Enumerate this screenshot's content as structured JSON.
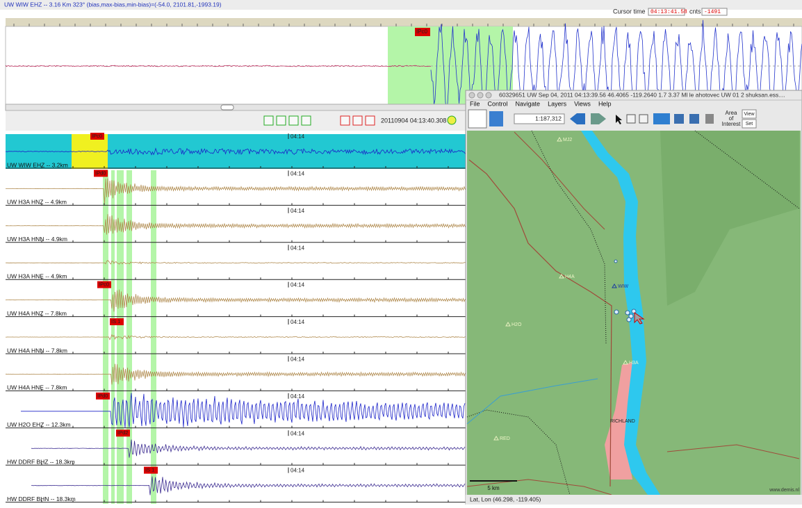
{
  "header": {
    "title": "UW WIW EHZ -- 3.16 Km 323° (bias,max-bias,min-bias)=(-54.0, 2101.81,-1993.19)",
    "cursor_label": "Cursor time",
    "cursor_time": "04:13:41.58",
    "counts_label": "cnts",
    "counts": "-1491"
  },
  "top_trace": {
    "pick": "IPc0"
  },
  "toolbar": {
    "datetime": "20110904 04:13:40.308"
  },
  "traces": [
    {
      "label": "UW WIW EHZ -- 3.2km",
      "pick": "IPc0",
      "time_mark": "04:14"
    },
    {
      "label": "UW H3A HNZ -- 4.9km",
      "pick": "IPd0",
      "time_mark": "04:14"
    },
    {
      "label": "UW H3A HNN -- 4.9km",
      "time_mark": "04:14"
    },
    {
      "label": "UW H3A HNE -- 4.9km",
      "time_mark": "04:14"
    },
    {
      "label": "UW H4A HNZ -- 7.8km",
      "pick": "IPc0",
      "time_mark": "04:14"
    },
    {
      "label": "UW H4A HNN -- 7.8km",
      "pick": "IS 1",
      "time_mark": "04:14"
    },
    {
      "label": "UW H4A HNE -- 7.8km",
      "time_mark": "04:14"
    },
    {
      "label": "UW H2O EHZ -- 12.3km",
      "pick": "IPd0",
      "time_mark": "04:14"
    },
    {
      "label": "HW DDRF BHZ -- 18.3km",
      "pick": "IPd2",
      "time_mark": "04:14"
    },
    {
      "label": "HW DDRF BHN -- 18.3km",
      "pick": "IS 1",
      "time_mark": "04:14"
    }
  ],
  "map_window": {
    "title": "60329651 UW Sep 04, 2011 04:13:39.56  46.4065 -119.2640  1.7 3.37 Ml le ahotovec UW 01  2    shuksan.ess....",
    "menu": [
      "File",
      "Control",
      "Navigate",
      "Layers",
      "Views",
      "Help"
    ],
    "scale": "1:187,312",
    "area_label": [
      "Area",
      "of",
      "Interest"
    ],
    "view_button": "View",
    "set_button": "Set",
    "places": [
      "MJ2",
      "H4A",
      "WIW",
      "H2O",
      "H3A",
      "RICHLAND",
      "RED"
    ],
    "scale_bar": "5 km",
    "credit": "www.demis.nl",
    "status": "Lat, Lon (46.298, -119.405)"
  }
}
